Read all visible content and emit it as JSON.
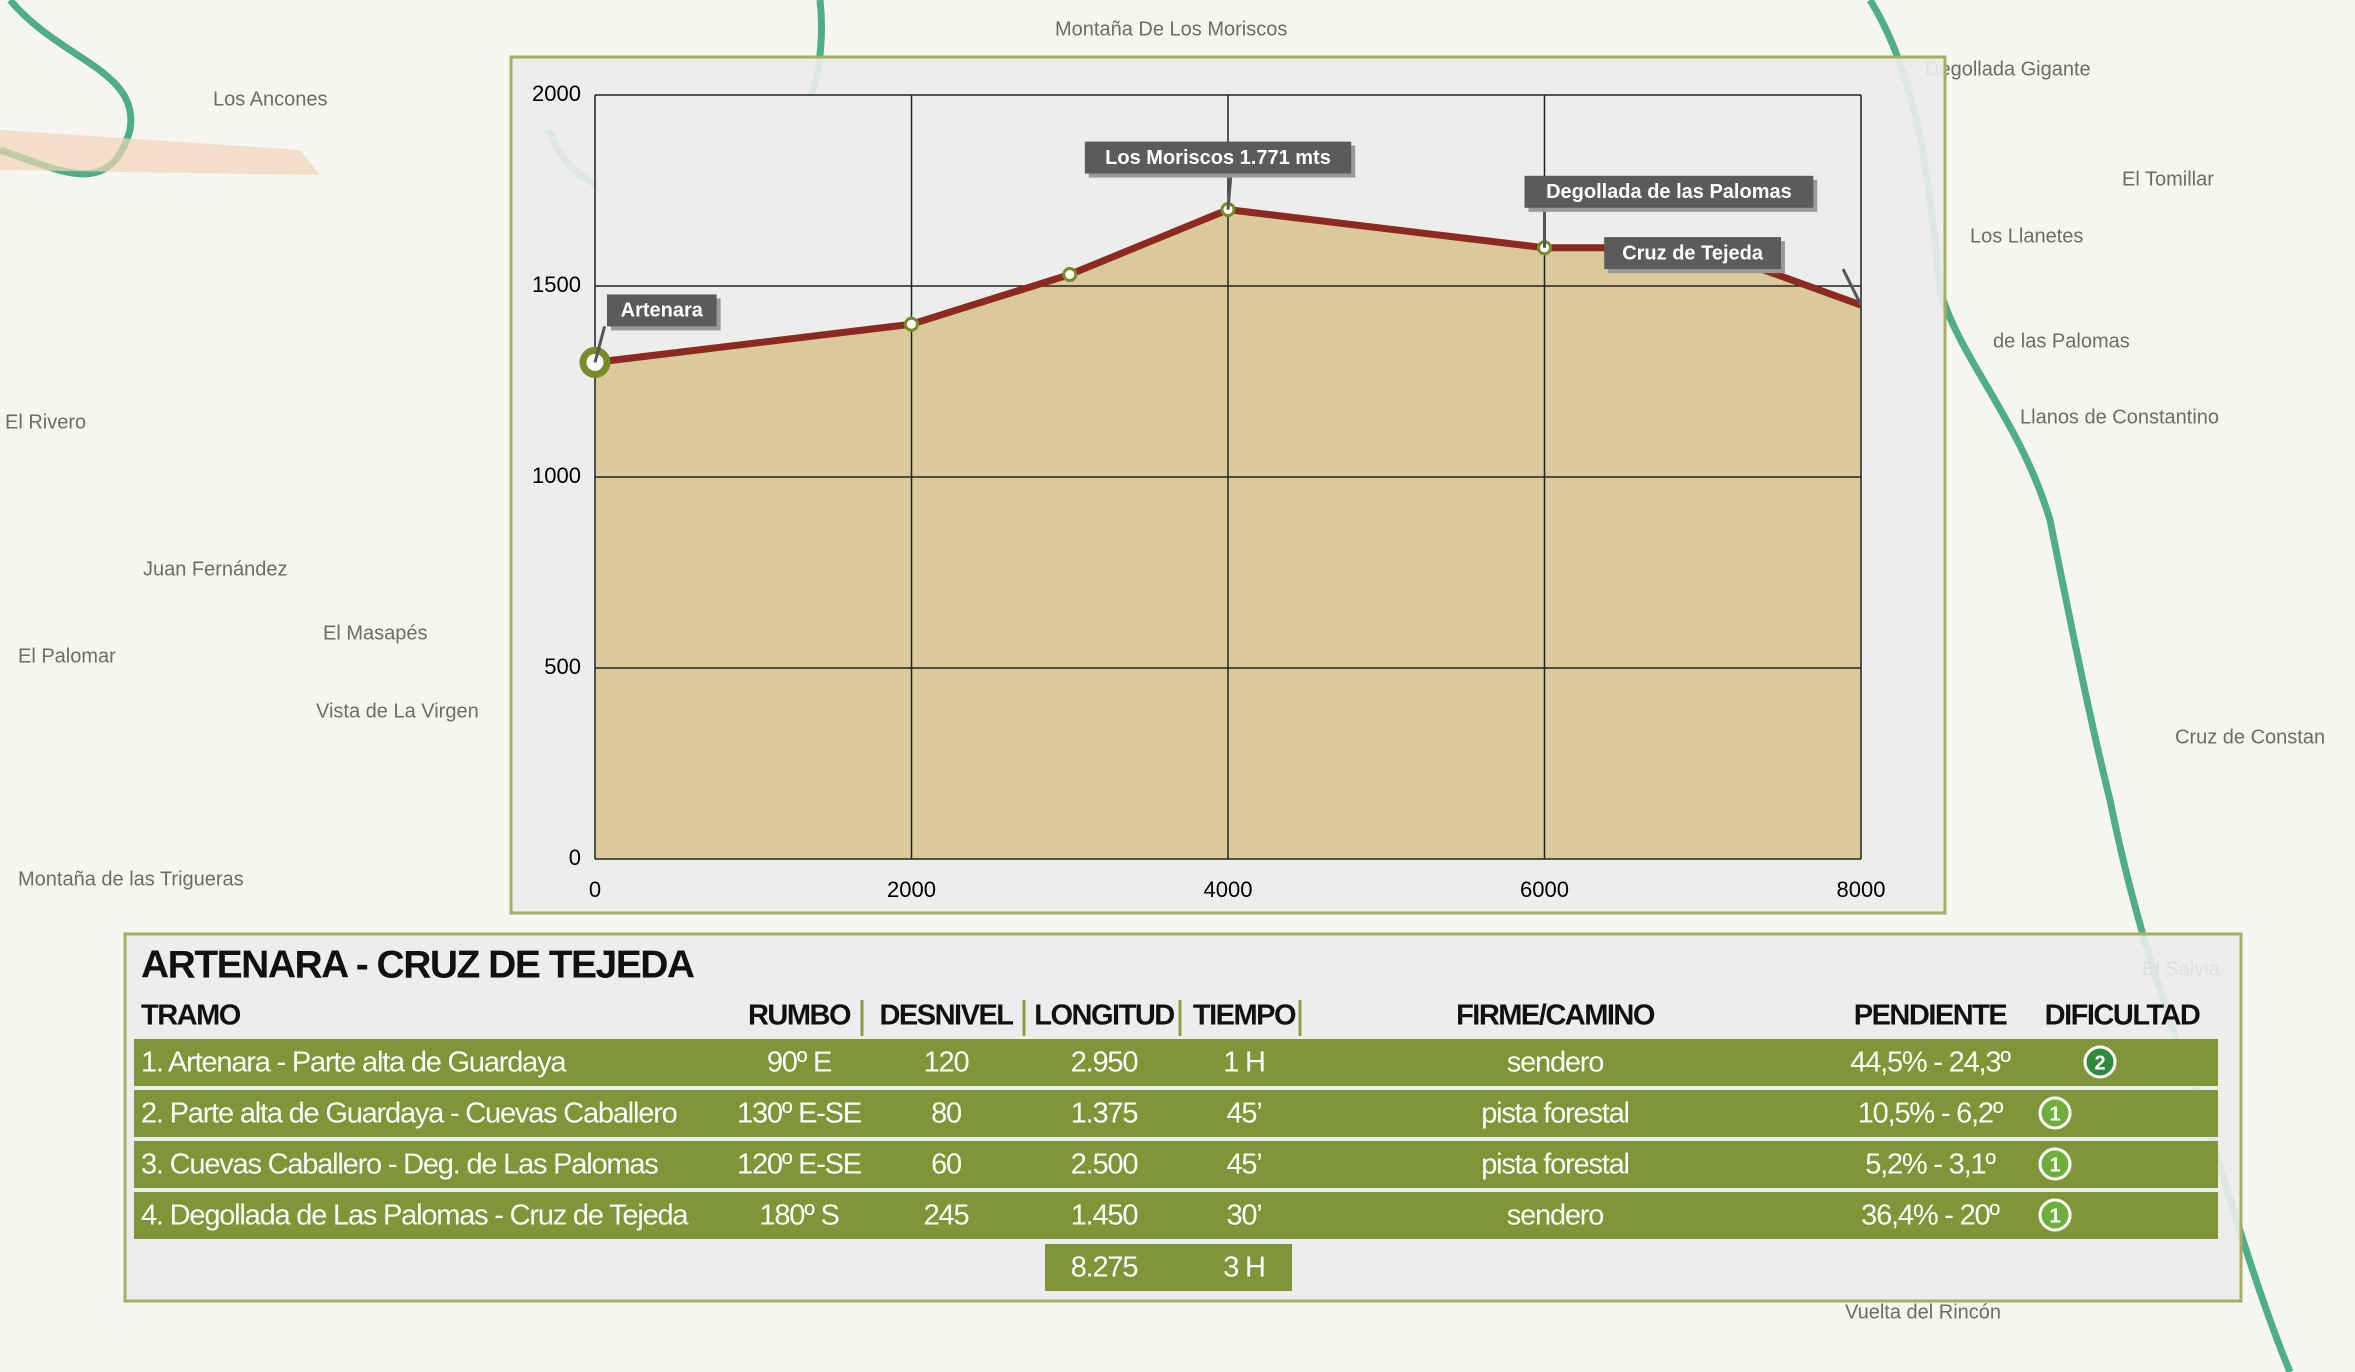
{
  "map": {
    "labels": [
      "Montaña De Los Moriscos",
      "Los Ancones",
      "El Tomillar",
      "Los Llanetes",
      "de las Palomas",
      "Llanos de Constantino",
      "El Rivero",
      "Juan Fernández",
      "El Masapés",
      "El Palomar",
      "Vista de La Virgen",
      "Montaña de las Trigueras",
      "Cruz de Constan",
      "El Salvia",
      "Vuelta del Rincón",
      "Degollada Gigante"
    ]
  },
  "chart_data": {
    "type": "area",
    "x": [
      0,
      2000,
      3000,
      4000,
      6000,
      7000,
      8000
    ],
    "values": [
      1300,
      1400,
      1530,
      1700,
      1600,
      1600,
      1450
    ],
    "color": "#8c2a21",
    "fill": "#d9c99b",
    "xlim": [
      0,
      8000
    ],
    "xticks": [
      0,
      2000,
      4000,
      6000,
      8000
    ],
    "ylim": [
      0,
      2000
    ],
    "yticks": [
      0,
      500,
      1000,
      1500,
      2000
    ],
    "grid": true,
    "annotations": [
      {
        "text": "Artenara",
        "x": 0
      },
      {
        "text": "Los Moriscos 1.771 mts",
        "x": 4000
      },
      {
        "text": "Degollada de las Palomas",
        "x": 6000
      },
      {
        "text": "Cruz de Tejeda",
        "x": 8000
      }
    ]
  },
  "table": {
    "title": "ARTENARA - CRUZ DE TEJEDA",
    "headers": [
      "TRAMO",
      "RUMBO",
      "DESNIVEL",
      "LONGITUD",
      "TIEMPO",
      "FIRME/CAMINO",
      "PENDIENTE",
      "DIFICULTAD"
    ],
    "rows": [
      [
        "1. Artenara - Parte alta de Guardaya",
        "90º E",
        "120",
        "2.950",
        "1 H",
        "sendero",
        "44,5% - 24,3º",
        "2"
      ],
      [
        "2. Parte alta de Guardaya - Cuevas Caballero",
        "130º E-SE",
        "80",
        "1.375",
        "45’",
        "pista forestal",
        "10,5% - 6,2º",
        "1"
      ],
      [
        "3. Cuevas Caballero - Deg. de Las Palomas",
        "120º E-SE",
        "60",
        "2.500",
        "45’",
        "pista forestal",
        "5,2% - 3,1º",
        "1"
      ],
      [
        "4. Degollada de Las Palomas - Cruz de Tejeda",
        "180º S",
        "245",
        "1.450",
        "30’",
        "sendero",
        "36,4% - 20º",
        "1"
      ]
    ],
    "totals": [
      "8.275",
      "3 H"
    ]
  }
}
